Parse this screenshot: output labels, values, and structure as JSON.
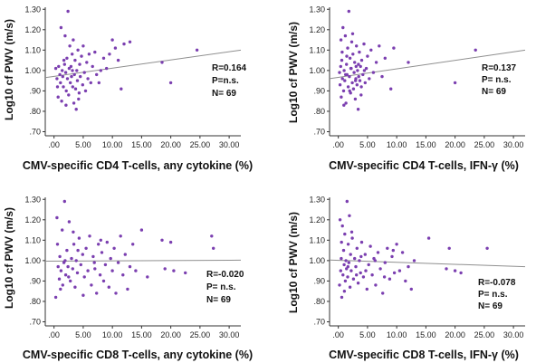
{
  "colors": {
    "point": "#7b3fb0",
    "fit_line": "#8f8f8f",
    "axis": "#333333"
  },
  "chart_data": [
    {
      "type": "scatter",
      "xlabel": "CMV-specific CD4 T-cells, any cytokine (%)",
      "ylabel": "Log10 cf PWV  (m/s)",
      "xlim": [
        -1.5,
        32
      ],
      "ylim": [
        0.68,
        1.31
      ],
      "x_ticks": [
        ".00",
        "5.00",
        "10.00",
        "15.00",
        "20.00",
        "25.00",
        "30.00"
      ],
      "y_ticks": [
        ".70",
        ".80",
        ".90",
        "1.00",
        "1.10",
        "1.20",
        "1.30"
      ],
      "stats": [
        "R=0.164",
        "P=n.s.",
        "N= 69"
      ],
      "fit_line": {
        "x": [
          -1.5,
          32
        ],
        "y": [
          0.965,
          1.1
        ]
      },
      "points": [
        [
          0.3,
          1.01
        ],
        [
          0.5,
          0.96
        ],
        [
          0.6,
          0.92
        ],
        [
          0.7,
          0.87
        ],
        [
          0.8,
          1.02
        ],
        [
          1.0,
          0.98
        ],
        [
          1.2,
          1.21
        ],
        [
          1.3,
          0.85
        ],
        [
          1.4,
          1.0
        ],
        [
          1.5,
          0.97
        ],
        [
          1.6,
          0.92
        ],
        [
          1.8,
          1.03
        ],
        [
          1.9,
          1.17
        ],
        [
          2.0,
          0.99
        ],
        [
          2.1,
          0.9
        ],
        [
          2.2,
          1.06
        ],
        [
          2.3,
          0.96
        ],
        [
          2.4,
          1.29
        ],
        [
          2.5,
          0.88
        ],
        [
          2.6,
          1.01
        ],
        [
          2.7,
          1.12
        ],
        [
          2.8,
          0.94
        ],
        [
          2.9,
          1.02
        ],
        [
          3.0,
          0.97
        ],
        [
          3.1,
          1.08
        ],
        [
          3.2,
          0.92
        ],
        [
          3.3,
          1.15
        ],
        [
          3.4,
          0.84
        ],
        [
          3.5,
          0.98
        ],
        [
          3.6,
          1.05
        ],
        [
          3.7,
          0.91
        ],
        [
          3.8,
          0.81
        ],
        [
          3.9,
          1.0
        ],
        [
          4.0,
          0.95
        ],
        [
          4.1,
          1.1
        ],
        [
          4.2,
          0.86
        ],
        [
          4.4,
          1.03
        ],
        [
          4.5,
          0.97
        ],
        [
          4.7,
          1.07
        ],
        [
          4.9,
          0.93
        ],
        [
          5.0,
          1.12
        ],
        [
          5.2,
          0.99
        ],
        [
          5.4,
          0.9
        ],
        [
          5.6,
          1.04
        ],
        [
          5.8,
          0.96
        ],
        [
          6.0,
          1.08
        ],
        [
          6.3,
          0.94
        ],
        [
          6.6,
          1.02
        ],
        [
          7.0,
          1.09
        ],
        [
          7.3,
          0.98
        ],
        [
          7.7,
          0.94
        ],
        [
          8.0,
          1.0
        ],
        [
          8.5,
          1.06
        ],
        [
          9.0,
          1.01
        ],
        [
          9.5,
          1.08
        ],
        [
          10.0,
          1.15
        ],
        [
          10.5,
          1.11
        ],
        [
          11.0,
          1.05
        ],
        [
          11.5,
          0.91
        ],
        [
          12.0,
          1.13
        ],
        [
          13.0,
          1.14
        ],
        [
          18.5,
          1.04
        ],
        [
          20.0,
          0.94
        ],
        [
          24.5,
          1.1
        ],
        [
          1.1,
          0.94
        ],
        [
          1.7,
          1.05
        ],
        [
          2.05,
          0.83
        ],
        [
          3.15,
          1.0
        ],
        [
          4.3,
          0.89
        ]
      ]
    },
    {
      "type": "scatter",
      "xlabel": "CMV-specific CD4 T-cells, IFN-γ (%)",
      "ylabel": "Log10 cf PWV  (m/s)",
      "xlim": [
        -1.5,
        32
      ],
      "ylim": [
        0.68,
        1.31
      ],
      "x_ticks": [
        ".00",
        "5.00",
        "10.00",
        "15.00",
        "20.00",
        "25.00",
        "30.00"
      ],
      "y_ticks": [
        ".70",
        ".80",
        ".90",
        "1.00",
        "1.10",
        "1.20",
        "1.30"
      ],
      "stats": [
        "R=0.137",
        "P= n.s.",
        "N= 69"
      ],
      "fit_line": {
        "x": [
          -1.5,
          32
        ],
        "y": [
          0.96,
          1.1
        ]
      },
      "points": [
        [
          0.2,
          0.99
        ],
        [
          0.3,
          0.93
        ],
        [
          0.4,
          1.02
        ],
        [
          0.5,
          0.87
        ],
        [
          0.6,
          1.05
        ],
        [
          0.7,
          0.96
        ],
        [
          0.8,
          1.21
        ],
        [
          0.9,
          0.9
        ],
        [
          1.0,
          1.0
        ],
        [
          1.1,
          0.95
        ],
        [
          1.2,
          1.17
        ],
        [
          1.3,
          0.84
        ],
        [
          1.4,
          1.03
        ],
        [
          1.5,
          0.98
        ],
        [
          1.6,
          1.11
        ],
        [
          1.7,
          0.92
        ],
        [
          1.8,
          1.29
        ],
        [
          1.9,
          0.97
        ],
        [
          2.0,
          1.06
        ],
        [
          2.1,
          0.89
        ],
        [
          2.2,
          1.01
        ],
        [
          2.3,
          1.14
        ],
        [
          2.4,
          0.94
        ],
        [
          2.5,
          1.08
        ],
        [
          2.6,
          0.91
        ],
        [
          2.7,
          0.99
        ],
        [
          2.8,
          1.04
        ],
        [
          2.9,
          0.86
        ],
        [
          3.0,
          0.96
        ],
        [
          3.1,
          1.12
        ],
        [
          3.2,
          0.93
        ],
        [
          3.3,
          1.0
        ],
        [
          3.4,
          0.81
        ],
        [
          3.5,
          0.97
        ],
        [
          3.6,
          1.09
        ],
        [
          3.7,
          0.95
        ],
        [
          3.8,
          1.02
        ],
        [
          3.9,
          0.88
        ],
        [
          4.0,
          1.05
        ],
        [
          4.2,
          0.98
        ],
        [
          4.4,
          1.13
        ],
        [
          4.6,
          0.94
        ],
        [
          4.8,
          1.01
        ],
        [
          5.0,
          1.07
        ],
        [
          5.3,
          0.96
        ],
        [
          5.6,
          1.1
        ],
        [
          6.0,
          0.99
        ],
        [
          6.5,
          1.04
        ],
        [
          7.0,
          1.12
        ],
        [
          7.5,
          0.97
        ],
        [
          8.0,
          1.06
        ],
        [
          9.0,
          0.91
        ],
        [
          9.5,
          1.11
        ],
        [
          12.0,
          1.04
        ],
        [
          20.0,
          0.94
        ],
        [
          23.5,
          1.1
        ],
        [
          0.45,
          1.15
        ],
        [
          0.95,
          0.83
        ],
        [
          1.45,
          1.07
        ],
        [
          1.95,
          0.9
        ],
        [
          2.45,
          1.18
        ],
        [
          2.95,
          0.95
        ],
        [
          3.45,
          1.03
        ],
        [
          3.95,
          0.92
        ],
        [
          4.45,
          1.0
        ],
        [
          0.65,
          1.09
        ],
        [
          1.25,
          0.98
        ],
        [
          2.15,
          1.01
        ],
        [
          3.05,
          1.02
        ]
      ]
    },
    {
      "type": "scatter",
      "xlabel": "CMV-specific CD8 T-cells, any cytokine (%)",
      "ylabel": "Log10 cf PWV  (m/s)",
      "xlim": [
        -1.5,
        32
      ],
      "ylim": [
        0.68,
        1.31
      ],
      "x_ticks": [
        ".00",
        "5.00",
        "10.00",
        "15.00",
        "20.00",
        "25.00",
        "30.00"
      ],
      "y_ticks": [
        ".70",
        ".80",
        ".90",
        "1.00",
        "1.10",
        "1.20",
        "1.30"
      ],
      "stats": [
        "R=-0.020",
        "P= n.s.",
        "N= 69"
      ],
      "fit_line": {
        "x": [
          -1.5,
          32
        ],
        "y": [
          0.997,
          1.002
        ]
      },
      "points": [
        [
          0.3,
          0.82
        ],
        [
          0.5,
          1.21
        ],
        [
          0.7,
          0.97
        ],
        [
          0.9,
          0.91
        ],
        [
          1.0,
          1.02
        ],
        [
          1.2,
          0.95
        ],
        [
          1.4,
          1.15
        ],
        [
          1.5,
          0.88
        ],
        [
          1.7,
          0.99
        ],
        [
          1.8,
          1.29
        ],
        [
          2.0,
          0.93
        ],
        [
          2.2,
          1.05
        ],
        [
          2.4,
          0.97
        ],
        [
          2.6,
          1.19
        ],
        [
          2.8,
          0.9
        ],
        [
          3.0,
          1.01
        ],
        [
          3.2,
          0.96
        ],
        [
          3.4,
          1.08
        ],
        [
          3.6,
          0.87
        ],
        [
          3.8,
          1.0
        ],
        [
          4.0,
          0.94
        ],
        [
          4.3,
          1.11
        ],
        [
          4.6,
          0.98
        ],
        [
          4.9,
          1.03
        ],
        [
          5.2,
          0.92
        ],
        [
          5.5,
          1.06
        ],
        [
          5.8,
          0.95
        ],
        [
          6.1,
          1.12
        ],
        [
          6.4,
          0.88
        ],
        [
          6.7,
          1.02
        ],
        [
          7.0,
          0.96
        ],
        [
          7.3,
          0.84
        ],
        [
          7.6,
          1.08
        ],
        [
          7.9,
          0.93
        ],
        [
          8.2,
          1.04
        ],
        [
          8.5,
          0.9
        ],
        [
          8.8,
          0.98
        ],
        [
          9.1,
          1.09
        ],
        [
          9.4,
          0.87
        ],
        [
          9.7,
          1.01
        ],
        [
          10.0,
          0.95
        ],
        [
          10.3,
          1.06
        ],
        [
          10.6,
          0.84
        ],
        [
          11.0,
          0.99
        ],
        [
          11.4,
          1.12
        ],
        [
          11.8,
          0.93
        ],
        [
          12.2,
          1.03
        ],
        [
          12.6,
          0.86
        ],
        [
          13.0,
          0.97
        ],
        [
          13.5,
          1.08
        ],
        [
          14.0,
          0.95
        ],
        [
          15.0,
          1.15
        ],
        [
          16.0,
          0.92
        ],
        [
          18.5,
          1.1
        ],
        [
          19.0,
          0.96
        ],
        [
          20.0,
          1.09
        ],
        [
          20.5,
          0.95
        ],
        [
          22.5,
          0.94
        ],
        [
          27.0,
          1.12
        ],
        [
          27.3,
          1.06
        ],
        [
          0.6,
          1.08
        ],
        [
          1.1,
          0.86
        ],
        [
          1.9,
          1.0
        ],
        [
          2.5,
          0.92
        ],
        [
          3.3,
          1.14
        ],
        [
          4.1,
          1.05
        ],
        [
          5.0,
          0.83
        ],
        [
          6.9,
          0.99
        ],
        [
          8.0,
          1.1
        ]
      ]
    },
    {
      "type": "scatter",
      "xlabel": "CMV-specific CD8 T-cells, IFN-γ (%)",
      "ylabel": "Log10 cf PWV  (m/s)",
      "xlim": [
        -1.5,
        32
      ],
      "ylim": [
        0.68,
        1.31
      ],
      "x_ticks": [
        ".00",
        "5.00",
        "10.00",
        "15.00",
        "20.00",
        "25.00",
        "30.00"
      ],
      "y_ticks": [
        ".70",
        ".80",
        ".90",
        "1.00",
        "1.10",
        "1.20",
        "1.30"
      ],
      "stats": [
        "R=-0.078",
        "P= n.s.",
        "N= 69"
      ],
      "fit_line": {
        "x": [
          -1.5,
          32
        ],
        "y": [
          1.003,
          0.97
        ]
      },
      "points": [
        [
          0.2,
          0.88
        ],
        [
          0.3,
          1.2
        ],
        [
          0.4,
          0.95
        ],
        [
          0.5,
          1.01
        ],
        [
          0.6,
          0.82
        ],
        [
          0.7,
          1.17
        ],
        [
          0.8,
          0.93
        ],
        [
          0.9,
          1.05
        ],
        [
          1.0,
          0.98
        ],
        [
          1.1,
          1.13
        ],
        [
          1.2,
          0.9
        ],
        [
          1.3,
          1.0
        ],
        [
          1.4,
          0.96
        ],
        [
          1.5,
          1.29
        ],
        [
          1.6,
          0.92
        ],
        [
          1.7,
          1.08
        ],
        [
          1.8,
          0.99
        ],
        [
          1.9,
          1.22
        ],
        [
          2.0,
          0.87
        ],
        [
          2.1,
          1.03
        ],
        [
          2.2,
          0.95
        ],
        [
          2.4,
          1.11
        ],
        [
          2.6,
          0.91
        ],
        [
          2.8,
          1.01
        ],
        [
          3.0,
          0.97
        ],
        [
          3.2,
          1.06
        ],
        [
          3.4,
          0.89
        ],
        [
          3.6,
          1.0
        ],
        [
          3.8,
          0.94
        ],
        [
          4.0,
          1.09
        ],
        [
          4.3,
          0.92
        ],
        [
          4.6,
          1.03
        ],
        [
          4.9,
          0.86
        ],
        [
          5.2,
          0.98
        ],
        [
          5.5,
          1.07
        ],
        [
          5.8,
          0.93
        ],
        [
          6.1,
          1.01
        ],
        [
          6.4,
          0.88
        ],
        [
          6.8,
          1.04
        ],
        [
          7.2,
          0.96
        ],
        [
          7.6,
          0.84
        ],
        [
          8.0,
          0.99
        ],
        [
          8.4,
          1.06
        ],
        [
          8.8,
          0.91
        ],
        [
          9.2,
          1.02
        ],
        [
          9.6,
          0.94
        ],
        [
          10.0,
          1.08
        ],
        [
          10.5,
          0.95
        ],
        [
          11.0,
          1.04
        ],
        [
          11.5,
          0.9
        ],
        [
          12.0,
          0.97
        ],
        [
          12.5,
          0.86
        ],
        [
          13.0,
          1.0
        ],
        [
          15.5,
          1.11
        ],
        [
          18.5,
          0.96
        ],
        [
          19.0,
          1.06
        ],
        [
          20.0,
          0.95
        ],
        [
          21.0,
          0.94
        ],
        [
          25.5,
          1.06
        ],
        [
          0.55,
          1.09
        ],
        [
          1.05,
          0.85
        ],
        [
          1.65,
          0.97
        ],
        [
          2.3,
          1.14
        ],
        [
          3.1,
          0.93
        ],
        [
          3.9,
          1.02
        ],
        [
          4.7,
          0.95
        ],
        [
          6.3,
          1.0
        ],
        [
          7.9,
          0.92
        ],
        [
          9.4,
          1.05
        ]
      ]
    }
  ]
}
